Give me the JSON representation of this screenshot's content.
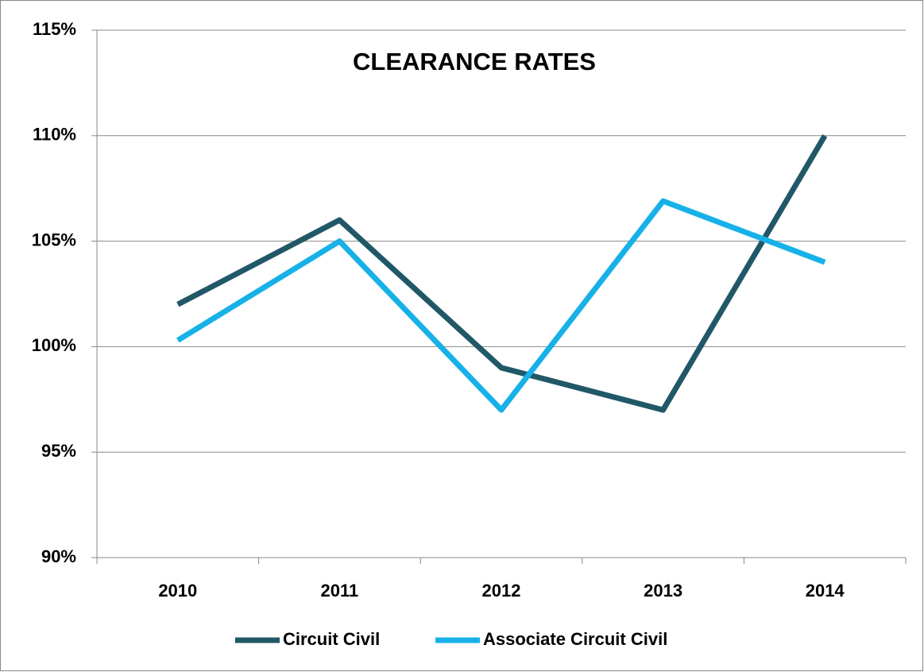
{
  "chart_data": {
    "type": "line",
    "title": "CLEARANCE RATES",
    "categories": [
      "2010",
      "2011",
      "2012",
      "2013",
      "2014"
    ],
    "series": [
      {
        "name": "Circuit Civil",
        "color": "#215867",
        "values": [
          102,
          106,
          99,
          97,
          110
        ]
      },
      {
        "name": "Associate Circuit Civil",
        "color": "#17b1e8",
        "values": [
          100.3,
          105,
          97,
          106.9,
          104
        ]
      }
    ],
    "ylim": [
      90,
      115
    ],
    "yticks": [
      {
        "value": 90,
        "label": "90%"
      },
      {
        "value": 95,
        "label": "95%"
      },
      {
        "value": 100,
        "label": "100%"
      },
      {
        "value": 105,
        "label": "105%"
      },
      {
        "value": 110,
        "label": "110%"
      },
      {
        "value": 115,
        "label": "115%"
      }
    ],
    "grid": true,
    "legend": "bottom"
  }
}
